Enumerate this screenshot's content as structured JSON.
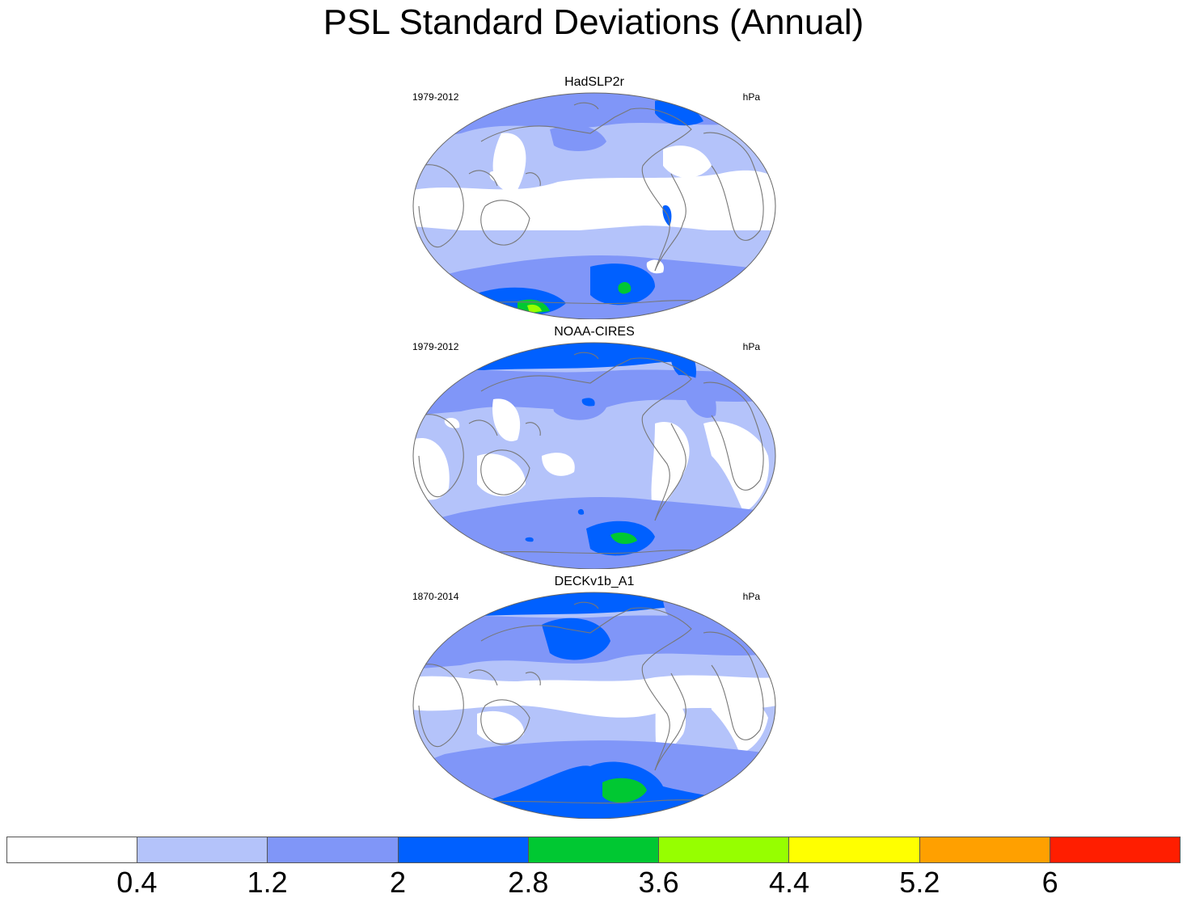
{
  "title": "PSL Standard Deviations (Annual)",
  "panels": [
    {
      "name": "HadSLP2r",
      "years": "1979-2012",
      "units": "hPa"
    },
    {
      "name": "NOAA-CIRES",
      "years": "1979-2012",
      "units": "hPa"
    },
    {
      "name": "DECKv1b_A1",
      "years": "1870-2014",
      "units": "hPa"
    }
  ],
  "colorbar": {
    "colors": [
      "#ffffff",
      "#b4c3fa",
      "#8096f8",
      "#0060ff",
      "#00c832",
      "#96ff00",
      "#ffff00",
      "#ffa000",
      "#ff1e00"
    ],
    "labels": [
      "0.4",
      "1.2",
      "2",
      "2.8",
      "3.6",
      "4.4",
      "5.2",
      "6"
    ]
  }
}
